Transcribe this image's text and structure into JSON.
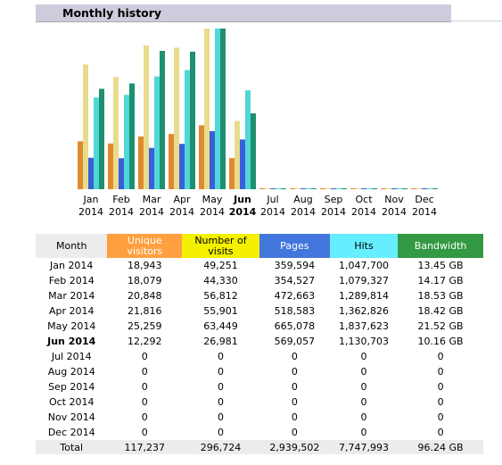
{
  "header": {
    "title": "Monthly history"
  },
  "chart_data": {
    "type": "bar",
    "categories": [
      "Jan",
      "Feb",
      "Mar",
      "Apr",
      "May",
      "Jun",
      "Jul",
      "Aug",
      "Sep",
      "Oct",
      "Nov",
      "Dec"
    ],
    "category_years": [
      "2014",
      "2014",
      "2014",
      "2014",
      "2014",
      "2014",
      "2014",
      "2014",
      "2014",
      "2014",
      "2014",
      "2014"
    ],
    "series": [
      {
        "color": "#e08a30",
        "values": [
          18943,
          18079,
          20848,
          21816,
          25259,
          12292,
          0,
          0,
          0,
          0,
          0,
          0
        ]
      },
      {
        "color": "#e8dc8c",
        "values": [
          49251,
          44330,
          56812,
          55901,
          63449,
          26981,
          0,
          0,
          0,
          0,
          0,
          0
        ]
      },
      {
        "color": "#3a5fd8",
        "values": [
          359594,
          354527,
          472663,
          518583,
          665078,
          569057,
          0,
          0,
          0,
          0,
          0,
          0
        ]
      },
      {
        "color": "#50d8d8",
        "values": [
          1047700,
          1079327,
          1289814,
          1362826,
          1837623,
          1130703,
          0,
          0,
          0,
          0,
          0,
          0
        ]
      },
      {
        "color": "#1e9070",
        "values": [
          13.45,
          14.17,
          18.53,
          18.42,
          21.52,
          10.16,
          0,
          0,
          0,
          0,
          0,
          0
        ]
      }
    ]
  },
  "table": {
    "columns": [
      "Month",
      "Unique visitors",
      "Number of visits",
      "Pages",
      "Hits",
      "Bandwidth"
    ],
    "rows": [
      [
        "Jan 2014",
        "18,943",
        "49,251",
        "359,594",
        "1,047,700",
        "13.45 GB"
      ],
      [
        "Feb 2014",
        "18,079",
        "44,330",
        "354,527",
        "1,079,327",
        "14.17 GB"
      ],
      [
        "Mar 2014",
        "20,848",
        "56,812",
        "472,663",
        "1,289,814",
        "18.53 GB"
      ],
      [
        "Apr 2014",
        "21,816",
        "55,901",
        "518,583",
        "1,362,826",
        "18.42 GB"
      ],
      [
        "May 2014",
        "25,259",
        "63,449",
        "665,078",
        "1,837,623",
        "21.52 GB"
      ],
      [
        "Jun 2014",
        "12,292",
        "26,981",
        "569,057",
        "1,130,703",
        "10.16 GB"
      ],
      [
        "Jul 2014",
        "0",
        "0",
        "0",
        "0",
        "0"
      ],
      [
        "Aug 2014",
        "0",
        "0",
        "0",
        "0",
        "0"
      ],
      [
        "Sep 2014",
        "0",
        "0",
        "0",
        "0",
        "0"
      ],
      [
        "Oct 2014",
        "0",
        "0",
        "0",
        "0",
        "0"
      ],
      [
        "Nov 2014",
        "0",
        "0",
        "0",
        "0",
        "0"
      ],
      [
        "Dec 2014",
        "0",
        "0",
        "0",
        "0",
        "0"
      ]
    ],
    "total": [
      "Total",
      "117,237",
      "296,724",
      "2,939,502",
      "7,747,993",
      "96.24 GB"
    ]
  }
}
